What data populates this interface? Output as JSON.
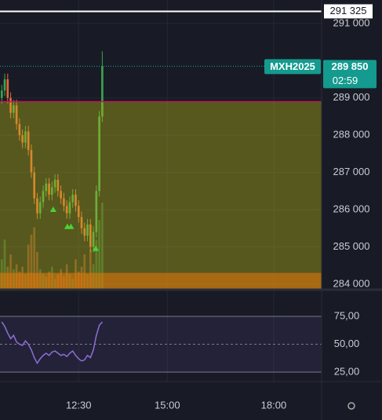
{
  "chart_data": {
    "type": "candlestick",
    "symbol": "MXH2025",
    "x": [
      620,
      625,
      630,
      635,
      640,
      645,
      650,
      655,
      660,
      665,
      670,
      675,
      680,
      685,
      690,
      695,
      700,
      705,
      710,
      715,
      720,
      725,
      730,
      735,
      740,
      745,
      750,
      755,
      760,
      765,
      770,
      775,
      780,
      785,
      790
    ],
    "open": [
      289000,
      289200,
      289500,
      289000,
      288600,
      288800,
      288300,
      288000,
      287800,
      288100,
      287600,
      287000,
      286300,
      285900,
      286200,
      286500,
      286700,
      286400,
      286600,
      286800,
      286500,
      286300,
      286100,
      285900,
      286200,
      286400,
      286100,
      285800,
      285500,
      285300,
      285600,
      285000,
      285400,
      286500,
      288500
    ],
    "high": [
      289350,
      289650,
      289650,
      289150,
      288950,
      288950,
      288450,
      288150,
      288250,
      288250,
      287750,
      287150,
      286450,
      286350,
      286650,
      286850,
      286850,
      286750,
      286950,
      286950,
      286650,
      286450,
      286250,
      286350,
      286550,
      286550,
      286250,
      285950,
      285650,
      285750,
      285750,
      285550,
      286650,
      288650,
      290250
    ],
    "low": [
      288850,
      289050,
      288850,
      288450,
      288450,
      288150,
      287850,
      287650,
      287650,
      287450,
      286850,
      286150,
      285750,
      285750,
      286050,
      286350,
      286250,
      286250,
      286450,
      286350,
      286150,
      285950,
      285750,
      285750,
      286050,
      285950,
      285650,
      285350,
      285150,
      285150,
      284850,
      284850,
      285250,
      286350,
      288350
    ],
    "close": [
      289200,
      289500,
      289000,
      288600,
      288800,
      288300,
      288000,
      287800,
      288100,
      287600,
      287000,
      286300,
      285900,
      286200,
      286500,
      286700,
      286400,
      286600,
      286800,
      286500,
      286300,
      286100,
      285900,
      286200,
      286400,
      286100,
      285800,
      285500,
      285300,
      285600,
      285000,
      285400,
      286500,
      288500,
      289850
    ],
    "volume": [
      12,
      20,
      9,
      14,
      8,
      10,
      7,
      9,
      6,
      18,
      22,
      25,
      15,
      8,
      6,
      5,
      7,
      9,
      4,
      6,
      8,
      5,
      10,
      6,
      4,
      12,
      7,
      9,
      14,
      6,
      16,
      10,
      20,
      28,
      35
    ],
    "up_color": "#3fa34d",
    "down_color": "#e26a3a",
    "xlim": [
      617,
      1161
    ],
    "xticks": [
      {
        "value": 750,
        "label": "12:30"
      },
      {
        "value": 900,
        "label": "15:00"
      },
      {
        "value": 1080,
        "label": "18:00"
      }
    ],
    "ylim": [
      283870,
      291630
    ],
    "yticks": [
      {
        "value": 291000,
        "label": "291 000"
      },
      {
        "value": 289000,
        "label": "289 000"
      },
      {
        "value": 288000,
        "label": "288 000"
      },
      {
        "value": 287000,
        "label": "287 000"
      },
      {
        "value": 286000,
        "label": "286 000"
      },
      {
        "value": 285000,
        "label": "285 000"
      },
      {
        "value": 284000,
        "label": "284 000"
      }
    ],
    "last_price": {
      "value": 289850,
      "label": "289 850"
    },
    "countdown": "02:59",
    "high_line": {
      "value": 291325,
      "label": "291 325"
    },
    "zones": [
      {
        "from": 283870,
        "to": 288900,
        "color": "rgba(190,190,20,0.38)"
      },
      {
        "from": 283870,
        "to": 284300,
        "color": "rgba(235,120,10,0.55)"
      }
    ],
    "signals": [
      {
        "x": 707,
        "value": 286000
      },
      {
        "x": 731,
        "value": 285540
      },
      {
        "x": 737,
        "value": 285540
      },
      {
        "x": 779,
        "value": 284950
      }
    ],
    "rsi": {
      "values": [
        70,
        66,
        60,
        55,
        58,
        52,
        50,
        49,
        53,
        50,
        45,
        38,
        33,
        37,
        40,
        42,
        40,
        43,
        44,
        42,
        40,
        41,
        39,
        42,
        44,
        40,
        37,
        35,
        36,
        40,
        38,
        45,
        58,
        67,
        70
      ],
      "ylim": [
        17.3,
        98.2
      ],
      "yticks": [
        {
          "value": 75,
          "label": "75,00"
        },
        {
          "value": 50,
          "label": "50,00"
        },
        {
          "value": 25,
          "label": "25,00"
        }
      ],
      "color": "#8c6fd6"
    }
  }
}
